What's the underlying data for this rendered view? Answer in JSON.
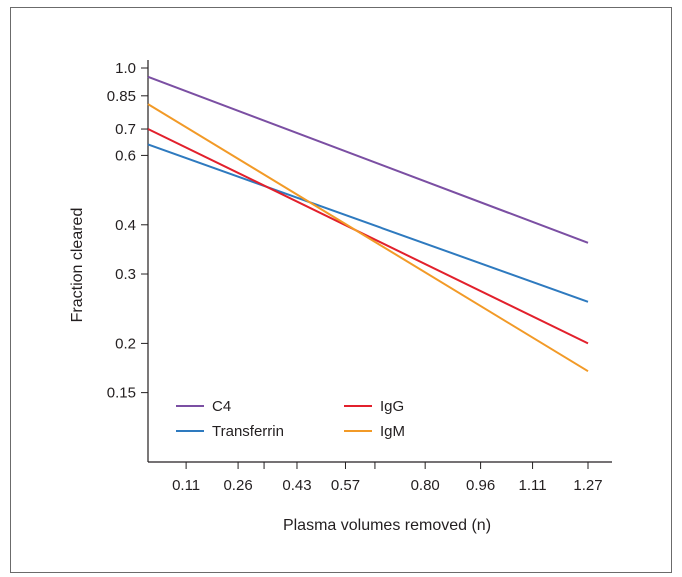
{
  "chart_data": {
    "type": "line",
    "title": "",
    "xlabel": "Plasma volumes removed (n)",
    "ylabel": "Fraction cleared",
    "y_scale": "log",
    "xlim": [
      0,
      1.27
    ],
    "ylim": [
      0.1,
      1.0
    ],
    "x_ticks": [
      "0.11",
      "0.26",
      "0.43",
      "0.57",
      "0.80",
      "0.96",
      "1.11",
      "1.27"
    ],
    "y_ticks": [
      "1.0",
      "0.85",
      "0.7",
      "0.6",
      "0.4",
      "0.3",
      "0.2",
      "0.15"
    ],
    "grid": false,
    "legend_position": "bottom-left",
    "series": [
      {
        "name": "C4",
        "color": "#7b4fa3",
        "x": [
          0,
          1.27
        ],
        "y": [
          0.95,
          0.36
        ]
      },
      {
        "name": "Transferrin",
        "color": "#2e7abf",
        "x": [
          0,
          1.27
        ],
        "y": [
          0.64,
          0.255
        ]
      },
      {
        "name": "IgG",
        "color": "#e2202c",
        "x": [
          0,
          1.27
        ],
        "y": [
          0.7,
          0.2
        ]
      },
      {
        "name": "IgM",
        "color": "#f29a27",
        "x": [
          0,
          1.27
        ],
        "y": [
          0.81,
          0.17
        ]
      }
    ]
  }
}
